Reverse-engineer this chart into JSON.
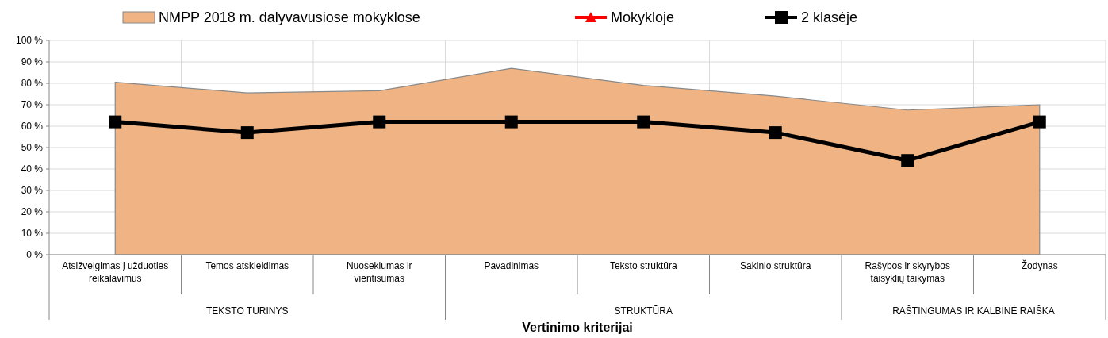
{
  "chart_data": {
    "type": "line",
    "xlabel": "Vertinimo kriterijai",
    "categories": [
      "Atsižvelgimas į užduoties reikalavimus",
      "Temos atskleidimas",
      "Nuoseklumas ir vientisumas",
      "Pavadinimas",
      "Teksto struktūra",
      "Sakinio struktūra",
      "Rašybos ir skyrybos taisyklių taikymas",
      "Žodynas"
    ],
    "series": [
      {
        "name": "NMPP 2018 m. dalyvavusiose mokyklose",
        "type": "area",
        "color": "#f0b484",
        "values": [
          80.5,
          75.5,
          76.5,
          87,
          79,
          74,
          67.5,
          70
        ]
      },
      {
        "name": "Mokykloje",
        "color": "#ff0000",
        "marker": "triangle",
        "values": [
          null,
          null,
          null,
          null,
          null,
          null,
          null,
          null
        ]
      },
      {
        "name": "2 klasėje",
        "color": "#000000",
        "marker": "square",
        "values": [
          62,
          57,
          62,
          62,
          62,
          57,
          44,
          62
        ]
      }
    ],
    "ylim": [
      0,
      100
    ],
    "yticks": [
      {
        "value": 0,
        "label": "0 %"
      },
      {
        "value": 10,
        "label": "10 %"
      },
      {
        "value": 20,
        "label": "20 %"
      },
      {
        "value": 30,
        "label": "30 %"
      },
      {
        "value": 40,
        "label": "40 %"
      },
      {
        "value": 50,
        "label": "50 %"
      },
      {
        "value": 60,
        "label": "60 %"
      },
      {
        "value": 70,
        "label": "70 %"
      },
      {
        "value": 80,
        "label": "80 %"
      },
      {
        "value": 90,
        "label": "90 %"
      },
      {
        "value": 100,
        "label": "100 %"
      }
    ],
    "annotations": [
      "TEKSTO TURINYS",
      "STRUKTŪRA",
      "RAŠTINGUMAS IR KALBINĖ RAIŠKA"
    ],
    "grid": true,
    "legend": "top"
  }
}
